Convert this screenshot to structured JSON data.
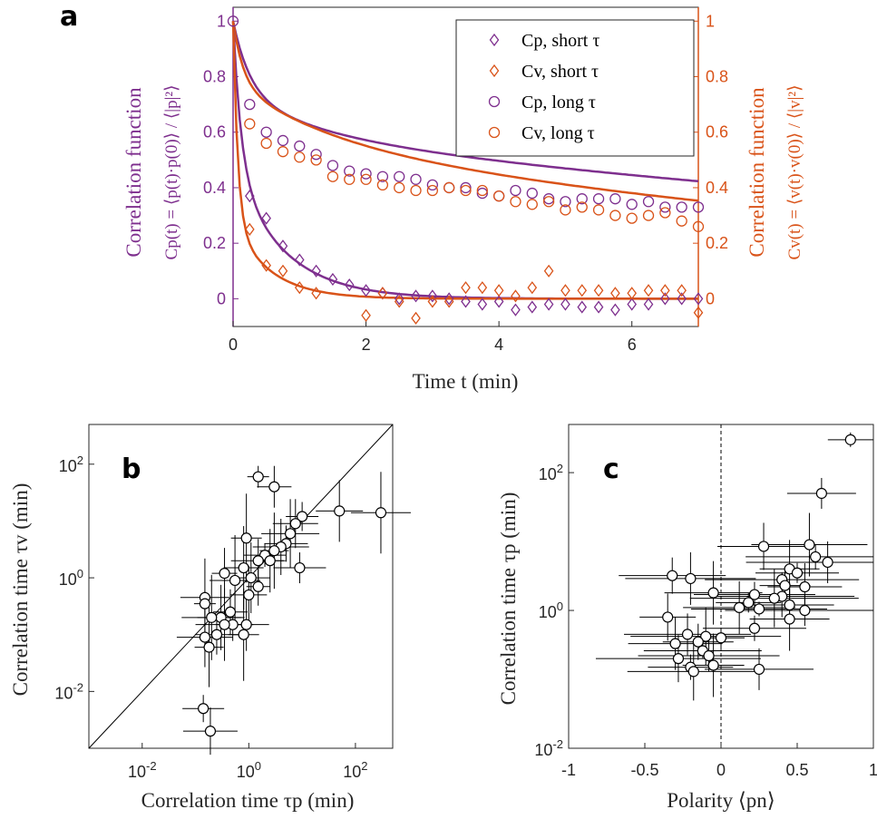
{
  "colors": {
    "purple": "#7E2F8E",
    "orange": "#D95319",
    "axis": "#262626"
  },
  "chart_data": [
    {
      "panel": "a",
      "type": "scatter",
      "xlabel": "Time t (min)",
      "ylabel_left": [
        "Correlation function",
        "Cp(t) = ⟨p(t)·p(0)⟩ / ⟨|p|²⟩"
      ],
      "ylabel_right": [
        "Correlation function",
        "Cv(t) = ⟨v(t)·v(0)⟩ / ⟨|v|²⟩"
      ],
      "xlim": [
        0,
        7
      ],
      "ylim": [
        -0.1,
        1.05
      ],
      "xticks": [
        "0",
        "2",
        "4",
        "6"
      ],
      "yticks": [
        "0",
        "0.2",
        "0.4",
        "0.6",
        "0.8",
        "1"
      ],
      "legend_position": "top-right",
      "series": [
        {
          "name": "Cp, short τ",
          "color": "#7E2F8E",
          "marker": "diamond",
          "x": [
            0.25,
            0.5,
            0.75,
            1.0,
            1.25,
            1.5,
            1.75,
            2.0,
            2.25,
            2.5,
            2.75,
            3.0,
            3.25,
            3.5,
            3.75,
            4.0,
            4.25,
            4.5,
            4.75,
            5.0,
            5.25,
            5.5,
            5.75,
            6.0,
            6.25,
            6.5,
            6.75,
            7.0
          ],
          "values": [
            0.37,
            0.29,
            0.19,
            0.14,
            0.1,
            0.07,
            0.05,
            0.03,
            0.02,
            0.0,
            0.01,
            0.01,
            0.0,
            -0.01,
            -0.02,
            -0.01,
            -0.04,
            -0.03,
            -0.02,
            -0.02,
            -0.03,
            -0.03,
            -0.04,
            -0.02,
            -0.02,
            0.0,
            0.0,
            0.0
          ]
        },
        {
          "name": "Cv, short τ",
          "color": "#D95319",
          "marker": "diamond",
          "x": [
            0.25,
            0.5,
            0.75,
            1.0,
            1.25,
            2.0,
            2.25,
            2.5,
            2.75,
            3.0,
            3.25,
            3.5,
            3.75,
            4.0,
            4.25,
            4.5,
            4.75,
            5.0,
            5.25,
            5.5,
            5.75,
            6.0,
            6.25,
            6.5,
            6.75,
            7.0
          ],
          "values": [
            0.25,
            0.12,
            0.1,
            0.04,
            0.02,
            -0.06,
            0.02,
            -0.01,
            -0.07,
            -0.01,
            -0.01,
            0.04,
            0.04,
            0.03,
            0.01,
            0.04,
            0.1,
            0.03,
            0.03,
            0.03,
            0.02,
            0.02,
            0.03,
            0.03,
            0.03,
            -0.05
          ]
        },
        {
          "name": "Cp, long τ",
          "color": "#7E2F8E",
          "marker": "circle",
          "x": [
            0.0,
            0.25,
            0.5,
            0.75,
            1.0,
            1.25,
            1.5,
            1.75,
            2.0,
            2.25,
            2.5,
            2.75,
            3.0,
            3.25,
            3.5,
            3.75,
            4.0,
            4.25,
            4.5,
            4.75,
            5.0,
            5.25,
            5.5,
            5.75,
            6.0,
            6.25,
            6.5,
            6.75,
            7.0
          ],
          "values": [
            1.0,
            0.7,
            0.6,
            0.57,
            0.55,
            0.52,
            0.48,
            0.46,
            0.45,
            0.44,
            0.44,
            0.43,
            0.41,
            0.4,
            0.4,
            0.38,
            0.37,
            0.39,
            0.38,
            0.36,
            0.35,
            0.36,
            0.36,
            0.36,
            0.34,
            0.35,
            0.33,
            0.33,
            0.33
          ]
        },
        {
          "name": "Cv, long τ",
          "color": "#D95319",
          "marker": "circle",
          "x": [
            0.25,
            0.5,
            0.75,
            1.0,
            1.25,
            1.5,
            1.75,
            2.0,
            2.25,
            2.5,
            2.75,
            3.0,
            3.25,
            3.5,
            3.75,
            4.0,
            4.25,
            4.5,
            4.75,
            5.0,
            5.25,
            5.5,
            5.75,
            6.0,
            6.25,
            6.5,
            6.75,
            7.0
          ],
          "values": [
            0.63,
            0.56,
            0.53,
            0.51,
            0.5,
            0.44,
            0.43,
            0.43,
            0.41,
            0.4,
            0.39,
            0.39,
            0.4,
            0.39,
            0.39,
            0.37,
            0.35,
            0.34,
            0.35,
            0.32,
            0.33,
            0.32,
            0.3,
            0.29,
            0.3,
            0.31,
            0.28,
            0.26
          ]
        }
      ]
    },
    {
      "panel": "b",
      "type": "scatter",
      "xlabel": "Correlation time τp (min)",
      "ylabel": "Correlation time τv (min)",
      "xscale": "log",
      "yscale": "log",
      "xlim": [
        0.001,
        500
      ],
      "ylim": [
        0.001,
        500
      ],
      "xticks": [
        "10^-2",
        "10^0",
        "10^2"
      ],
      "yticks": [
        "10^-2",
        "10^0",
        "10^2"
      ],
      "identity_line": true,
      "points": [
        {
          "x": 1.5,
          "y": 60
        },
        {
          "x": 3.0,
          "y": 40
        },
        {
          "x": 50,
          "y": 15
        },
        {
          "x": 300,
          "y": 14
        },
        {
          "x": 10,
          "y": 12
        },
        {
          "x": 7.5,
          "y": 9
        },
        {
          "x": 6,
          "y": 6
        },
        {
          "x": 0.9,
          "y": 5
        },
        {
          "x": 5,
          "y": 4
        },
        {
          "x": 4,
          "y": 3.5
        },
        {
          "x": 3,
          "y": 3
        },
        {
          "x": 2,
          "y": 2.5
        },
        {
          "x": 1.5,
          "y": 2
        },
        {
          "x": 2.5,
          "y": 2
        },
        {
          "x": 0.8,
          "y": 1.5
        },
        {
          "x": 9,
          "y": 1.5
        },
        {
          "x": 0.35,
          "y": 1.2
        },
        {
          "x": 1.1,
          "y": 1.0
        },
        {
          "x": 0.55,
          "y": 0.9
        },
        {
          "x": 1.5,
          "y": 0.7
        },
        {
          "x": 1.0,
          "y": 0.5
        },
        {
          "x": 0.15,
          "y": 0.45
        },
        {
          "x": 0.15,
          "y": 0.35
        },
        {
          "x": 0.45,
          "y": 0.25
        },
        {
          "x": 0.3,
          "y": 0.2
        },
        {
          "x": 0.2,
          "y": 0.2
        },
        {
          "x": 0.5,
          "y": 0.15
        },
        {
          "x": 0.9,
          "y": 0.15
        },
        {
          "x": 0.35,
          "y": 0.15
        },
        {
          "x": 0.8,
          "y": 0.1
        },
        {
          "x": 0.25,
          "y": 0.1
        },
        {
          "x": 0.15,
          "y": 0.09
        },
        {
          "x": 0.18,
          "y": 0.06
        },
        {
          "x": 0.14,
          "y": 0.005
        },
        {
          "x": 0.19,
          "y": 0.002
        }
      ]
    },
    {
      "panel": "c",
      "type": "scatter",
      "xlabel": "Polarity ⟨pn⟩",
      "ylabel": "Correlation time τp (min)",
      "yscale": "log",
      "xlim": [
        -1,
        1
      ],
      "ylim": [
        0.01,
        500
      ],
      "xticks": [
        "-1",
        "-0.5",
        "0",
        "0.5",
        "1"
      ],
      "yticks": [
        "10^-2",
        "10^0",
        "10^2"
      ],
      "zero_line": true,
      "points": [
        {
          "x": 0.85,
          "y": 300
        },
        {
          "x": 0.66,
          "y": 50
        },
        {
          "x": 0.28,
          "y": 8.5
        },
        {
          "x": 0.58,
          "y": 9
        },
        {
          "x": 0.62,
          "y": 6
        },
        {
          "x": 0.7,
          "y": 5
        },
        {
          "x": 0.45,
          "y": 4
        },
        {
          "x": 0.5,
          "y": 3.5
        },
        {
          "x": -0.32,
          "y": 3.2
        },
        {
          "x": -0.2,
          "y": 2.9
        },
        {
          "x": 0.4,
          "y": 2.8
        },
        {
          "x": 0.42,
          "y": 2.3
        },
        {
          "x": 0.55,
          "y": 2.2
        },
        {
          "x": -0.05,
          "y": 1.8
        },
        {
          "x": 0.22,
          "y": 1.7
        },
        {
          "x": 0.4,
          "y": 1.6
        },
        {
          "x": 0.35,
          "y": 1.5
        },
        {
          "x": 0.18,
          "y": 1.3
        },
        {
          "x": 0.45,
          "y": 1.2
        },
        {
          "x": 0.12,
          "y": 1.1
        },
        {
          "x": 0.25,
          "y": 1.05
        },
        {
          "x": 0.55,
          "y": 1.0
        },
        {
          "x": -0.35,
          "y": 0.8
        },
        {
          "x": 0.45,
          "y": 0.75
        },
        {
          "x": 0.22,
          "y": 0.55
        },
        {
          "x": -0.22,
          "y": 0.45
        },
        {
          "x": -0.1,
          "y": 0.42
        },
        {
          "x": 0.0,
          "y": 0.4
        },
        {
          "x": -0.15,
          "y": 0.35
        },
        {
          "x": -0.3,
          "y": 0.33
        },
        {
          "x": -0.12,
          "y": 0.26
        },
        {
          "x": -0.08,
          "y": 0.22
        },
        {
          "x": -0.28,
          "y": 0.2
        },
        {
          "x": -0.05,
          "y": 0.16
        },
        {
          "x": -0.2,
          "y": 0.15
        },
        {
          "x": 0.25,
          "y": 0.14
        },
        {
          "x": -0.18,
          "y": 0.13
        }
      ]
    }
  ],
  "panels": {
    "a": {
      "letter": "a"
    },
    "b": {
      "letter": "b"
    },
    "c": {
      "letter": "c"
    }
  }
}
